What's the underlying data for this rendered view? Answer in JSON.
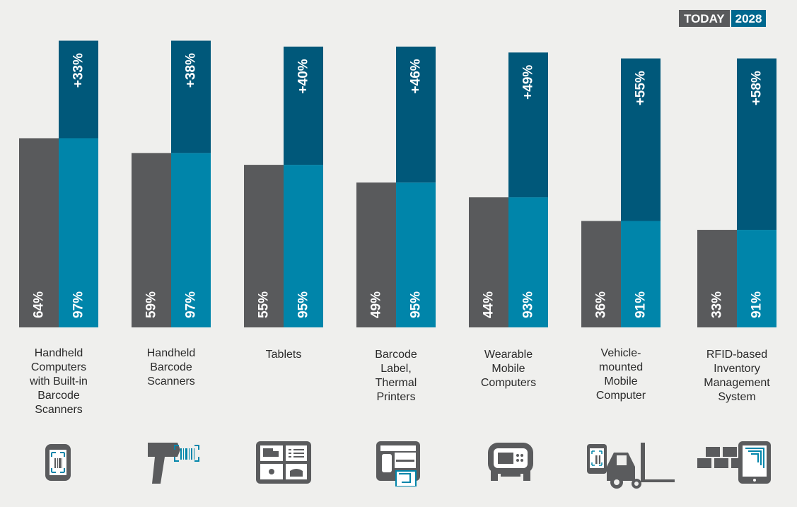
{
  "legend": {
    "today_label": "TODAY",
    "future_label": "2028"
  },
  "colors": {
    "background": "#efefed",
    "today": "#595a5c",
    "future_base": "#0085aa",
    "future_growth": "#00587a",
    "label_text": "#2b2b2b"
  },
  "chart_data": {
    "type": "bar",
    "title": "",
    "xlabel": "",
    "ylabel": "",
    "ylim": [
      0,
      100
    ],
    "grid": false,
    "legend_position": "top-right",
    "categories": [
      "Handheld Computers with Built-in Barcode Scanners",
      "Handheld Barcode Scanners",
      "Tablets",
      "Barcode Label, Thermal Printers",
      "Wearable Mobile Computers",
      "Vehicle-mounted Mobile Computer",
      "RFID-based Inventory Management System"
    ],
    "category_lines": [
      [
        "Handheld",
        "Computers",
        "with Built-in",
        "Barcode",
        "Scanners"
      ],
      [
        "Handheld",
        "Barcode",
        "Scanners"
      ],
      [
        "Tablets"
      ],
      [
        "Barcode",
        "Label,",
        "Thermal",
        "Printers"
      ],
      [
        "Wearable",
        "Mobile",
        "Computers"
      ],
      [
        "Vehicle-",
        "mounted",
        "Mobile",
        "Computer"
      ],
      [
        "RFID-based",
        "Inventory",
        "Management",
        "System"
      ]
    ],
    "series": [
      {
        "name": "TODAY",
        "values": [
          64,
          59,
          55,
          49,
          44,
          36,
          33
        ],
        "labels": [
          "64%",
          "59%",
          "55%",
          "49%",
          "44%",
          "36%",
          "33%"
        ]
      },
      {
        "name": "2028",
        "values": [
          97,
          97,
          95,
          95,
          93,
          91,
          91
        ],
        "labels": [
          "97%",
          "97%",
          "95%",
          "95%",
          "93%",
          "91%",
          "91%"
        ]
      }
    ],
    "growth_labels": [
      "+33%",
      "+38%",
      "+40%",
      "+46%",
      "+49%",
      "+55%",
      "+58%"
    ],
    "icons": [
      "handheld-computer-icon",
      "barcode-scanner-icon",
      "tablet-icon",
      "label-printer-icon",
      "wearable-computer-icon",
      "vehicle-mounted-computer-icon",
      "rfid-inventory-icon"
    ]
  }
}
